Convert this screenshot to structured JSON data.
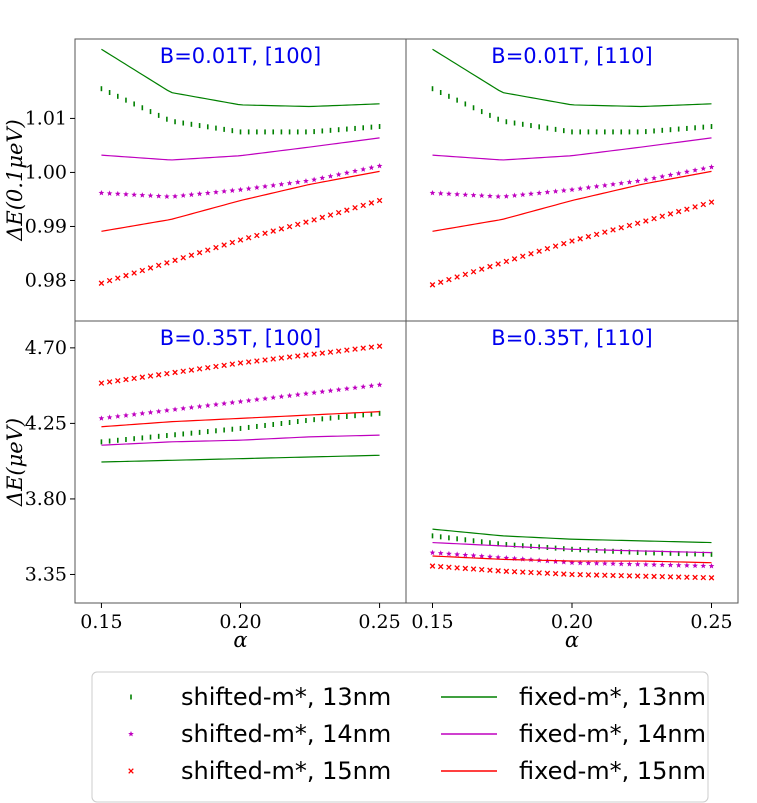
{
  "chart_data": {
    "type": "line",
    "x_label": "α",
    "x_ticks": [
      "0.15",
      "0.20",
      "0.25"
    ],
    "x_tick_values": [
      0.15,
      0.2,
      0.25
    ],
    "xlim": [
      0.1405,
      0.2595
    ],
    "rows": [
      {
        "ylabel": "ΔE(0.1μeV)",
        "ylim": [
          0.9725,
          1.0247
        ],
        "y_ticks": [
          "0.98",
          "0.99",
          "1.00",
          "1.01"
        ],
        "y_tick_values": [
          0.98,
          0.99,
          1.0,
          1.01
        ]
      },
      {
        "ylabel": "ΔE(μeV)",
        "ylim": [
          3.18,
          4.86
        ],
        "y_ticks": [
          "3.35",
          "3.80",
          "4.25",
          "4.70"
        ],
        "y_tick_values": [
          3.35,
          3.8,
          4.25,
          4.7
        ]
      }
    ],
    "panels": [
      {
        "title": "B=0.01T, [100]",
        "row": 0,
        "series": [
          {
            "key": "s13",
            "x": [
              0.15,
              0.175,
              0.2,
              0.225,
              0.25
            ],
            "y": [
              1.0155,
              1.0095,
              1.0075,
              1.0075,
              1.0085
            ]
          },
          {
            "key": "s14",
            "x": [
              0.15,
              0.175,
              0.2,
              0.225,
              0.25
            ],
            "y": [
              0.9962,
              0.9955,
              0.9968,
              0.9985,
              1.0012
            ]
          },
          {
            "key": "s15",
            "x": [
              0.15,
              0.175,
              0.2,
              0.225,
              0.25
            ],
            "y": [
              0.9795,
              0.9835,
              0.9875,
              0.991,
              0.9948
            ]
          },
          {
            "key": "f13",
            "x": [
              0.15,
              0.175,
              0.2,
              0.225,
              0.25
            ],
            "y": [
              1.0228,
              1.0148,
              1.0125,
              1.0122,
              1.0127
            ]
          },
          {
            "key": "f14",
            "x": [
              0.15,
              0.175,
              0.2,
              0.225,
              0.25
            ],
            "y": [
              1.0032,
              1.0023,
              1.0031,
              1.0047,
              1.0064
            ]
          },
          {
            "key": "f15",
            "x": [
              0.15,
              0.175,
              0.2,
              0.225,
              0.25
            ],
            "y": [
              0.9891,
              0.9913,
              0.9948,
              0.9978,
              1.0002
            ]
          }
        ]
      },
      {
        "title": "B=0.01T, [110]",
        "row": 0,
        "series": [
          {
            "key": "s13",
            "x": [
              0.15,
              0.175,
              0.2,
              0.225,
              0.25
            ],
            "y": [
              1.0155,
              1.0095,
              1.0075,
              1.0075,
              1.0085
            ]
          },
          {
            "key": "s14",
            "x": [
              0.15,
              0.175,
              0.2,
              0.225,
              0.25
            ],
            "y": [
              0.9962,
              0.9955,
              0.9968,
              0.9985,
              1.001
            ]
          },
          {
            "key": "s15",
            "x": [
              0.15,
              0.175,
              0.2,
              0.225,
              0.25
            ],
            "y": [
              0.9792,
              0.9833,
              0.9873,
              0.9908,
              0.9945
            ]
          },
          {
            "key": "f13",
            "x": [
              0.15,
              0.175,
              0.2,
              0.225,
              0.25
            ],
            "y": [
              1.0228,
              1.0148,
              1.0125,
              1.0122,
              1.0127
            ]
          },
          {
            "key": "f14",
            "x": [
              0.15,
              0.175,
              0.2,
              0.225,
              0.25
            ],
            "y": [
              1.0032,
              1.0023,
              1.0031,
              1.0047,
              1.0064
            ]
          },
          {
            "key": "f15",
            "x": [
              0.15,
              0.175,
              0.2,
              0.225,
              0.25
            ],
            "y": [
              0.9891,
              0.9913,
              0.9948,
              0.9978,
              1.0002
            ]
          }
        ]
      },
      {
        "title": "B=0.35T, [100]",
        "row": 1,
        "series": [
          {
            "key": "s13",
            "x": [
              0.15,
              0.175,
              0.2,
              0.225,
              0.25
            ],
            "y": [
              4.14,
              4.18,
              4.22,
              4.27,
              4.31
            ]
          },
          {
            "key": "s14",
            "x": [
              0.15,
              0.175,
              0.2,
              0.225,
              0.25
            ],
            "y": [
              4.28,
              4.33,
              4.38,
              4.43,
              4.48
            ]
          },
          {
            "key": "s15",
            "x": [
              0.15,
              0.175,
              0.2,
              0.225,
              0.25
            ],
            "y": [
              4.49,
              4.55,
              4.61,
              4.66,
              4.71
            ]
          },
          {
            "key": "f13",
            "x": [
              0.15,
              0.175,
              0.2,
              0.225,
              0.25
            ],
            "y": [
              4.02,
              4.03,
              4.04,
              4.05,
              4.06
            ]
          },
          {
            "key": "f14",
            "x": [
              0.15,
              0.175,
              0.2,
              0.225,
              0.25
            ],
            "y": [
              4.12,
              4.14,
              4.15,
              4.17,
              4.18
            ]
          },
          {
            "key": "f15",
            "x": [
              0.15,
              0.175,
              0.2,
              0.225,
              0.25
            ],
            "y": [
              4.23,
              4.26,
              4.28,
              4.3,
              4.32
            ]
          }
        ]
      },
      {
        "title": "B=0.35T, [110]",
        "row": 1,
        "series": [
          {
            "key": "s13",
            "x": [
              0.15,
              0.175,
              0.2,
              0.225,
              0.25
            ],
            "y": [
              3.58,
              3.53,
              3.5,
              3.48,
              3.47
            ]
          },
          {
            "key": "s14",
            "x": [
              0.15,
              0.175,
              0.2,
              0.225,
              0.25
            ],
            "y": [
              3.48,
              3.45,
              3.42,
              3.41,
              3.4
            ]
          },
          {
            "key": "s15",
            "x": [
              0.15,
              0.175,
              0.2,
              0.225,
              0.25
            ],
            "y": [
              3.4,
              3.37,
              3.35,
              3.34,
              3.33
            ]
          },
          {
            "key": "f13",
            "x": [
              0.15,
              0.175,
              0.2,
              0.225,
              0.25
            ],
            "y": [
              3.62,
              3.58,
              3.56,
              3.55,
              3.54
            ]
          },
          {
            "key": "f14",
            "x": [
              0.15,
              0.175,
              0.2,
              0.225,
              0.25
            ],
            "y": [
              3.54,
              3.52,
              3.5,
              3.49,
              3.48
            ]
          },
          {
            "key": "f15",
            "x": [
              0.15,
              0.175,
              0.2,
              0.225,
              0.25
            ],
            "y": [
              3.46,
              3.44,
              3.43,
              3.43,
              3.42
            ]
          }
        ]
      }
    ],
    "legend": [
      {
        "key": "s13",
        "label": "shifted-m*, 13nm",
        "marker": "tick",
        "color": "#008000"
      },
      {
        "key": "s14",
        "label": "shifted-m*, 14nm",
        "marker": "star",
        "color": "#bf00bf"
      },
      {
        "key": "s15",
        "label": "shifted-m*, 15nm",
        "marker": "x",
        "color": "#ff0000"
      },
      {
        "key": "f13",
        "label": "fixed-m*, 13nm",
        "marker": "line",
        "color": "#008000"
      },
      {
        "key": "f14",
        "label": "fixed-m*, 14nm",
        "marker": "line",
        "color": "#bf00bf"
      },
      {
        "key": "f15",
        "label": "fixed-m*, 15nm",
        "marker": "line",
        "color": "#ff0000"
      }
    ],
    "legend_position": "bottom"
  }
}
